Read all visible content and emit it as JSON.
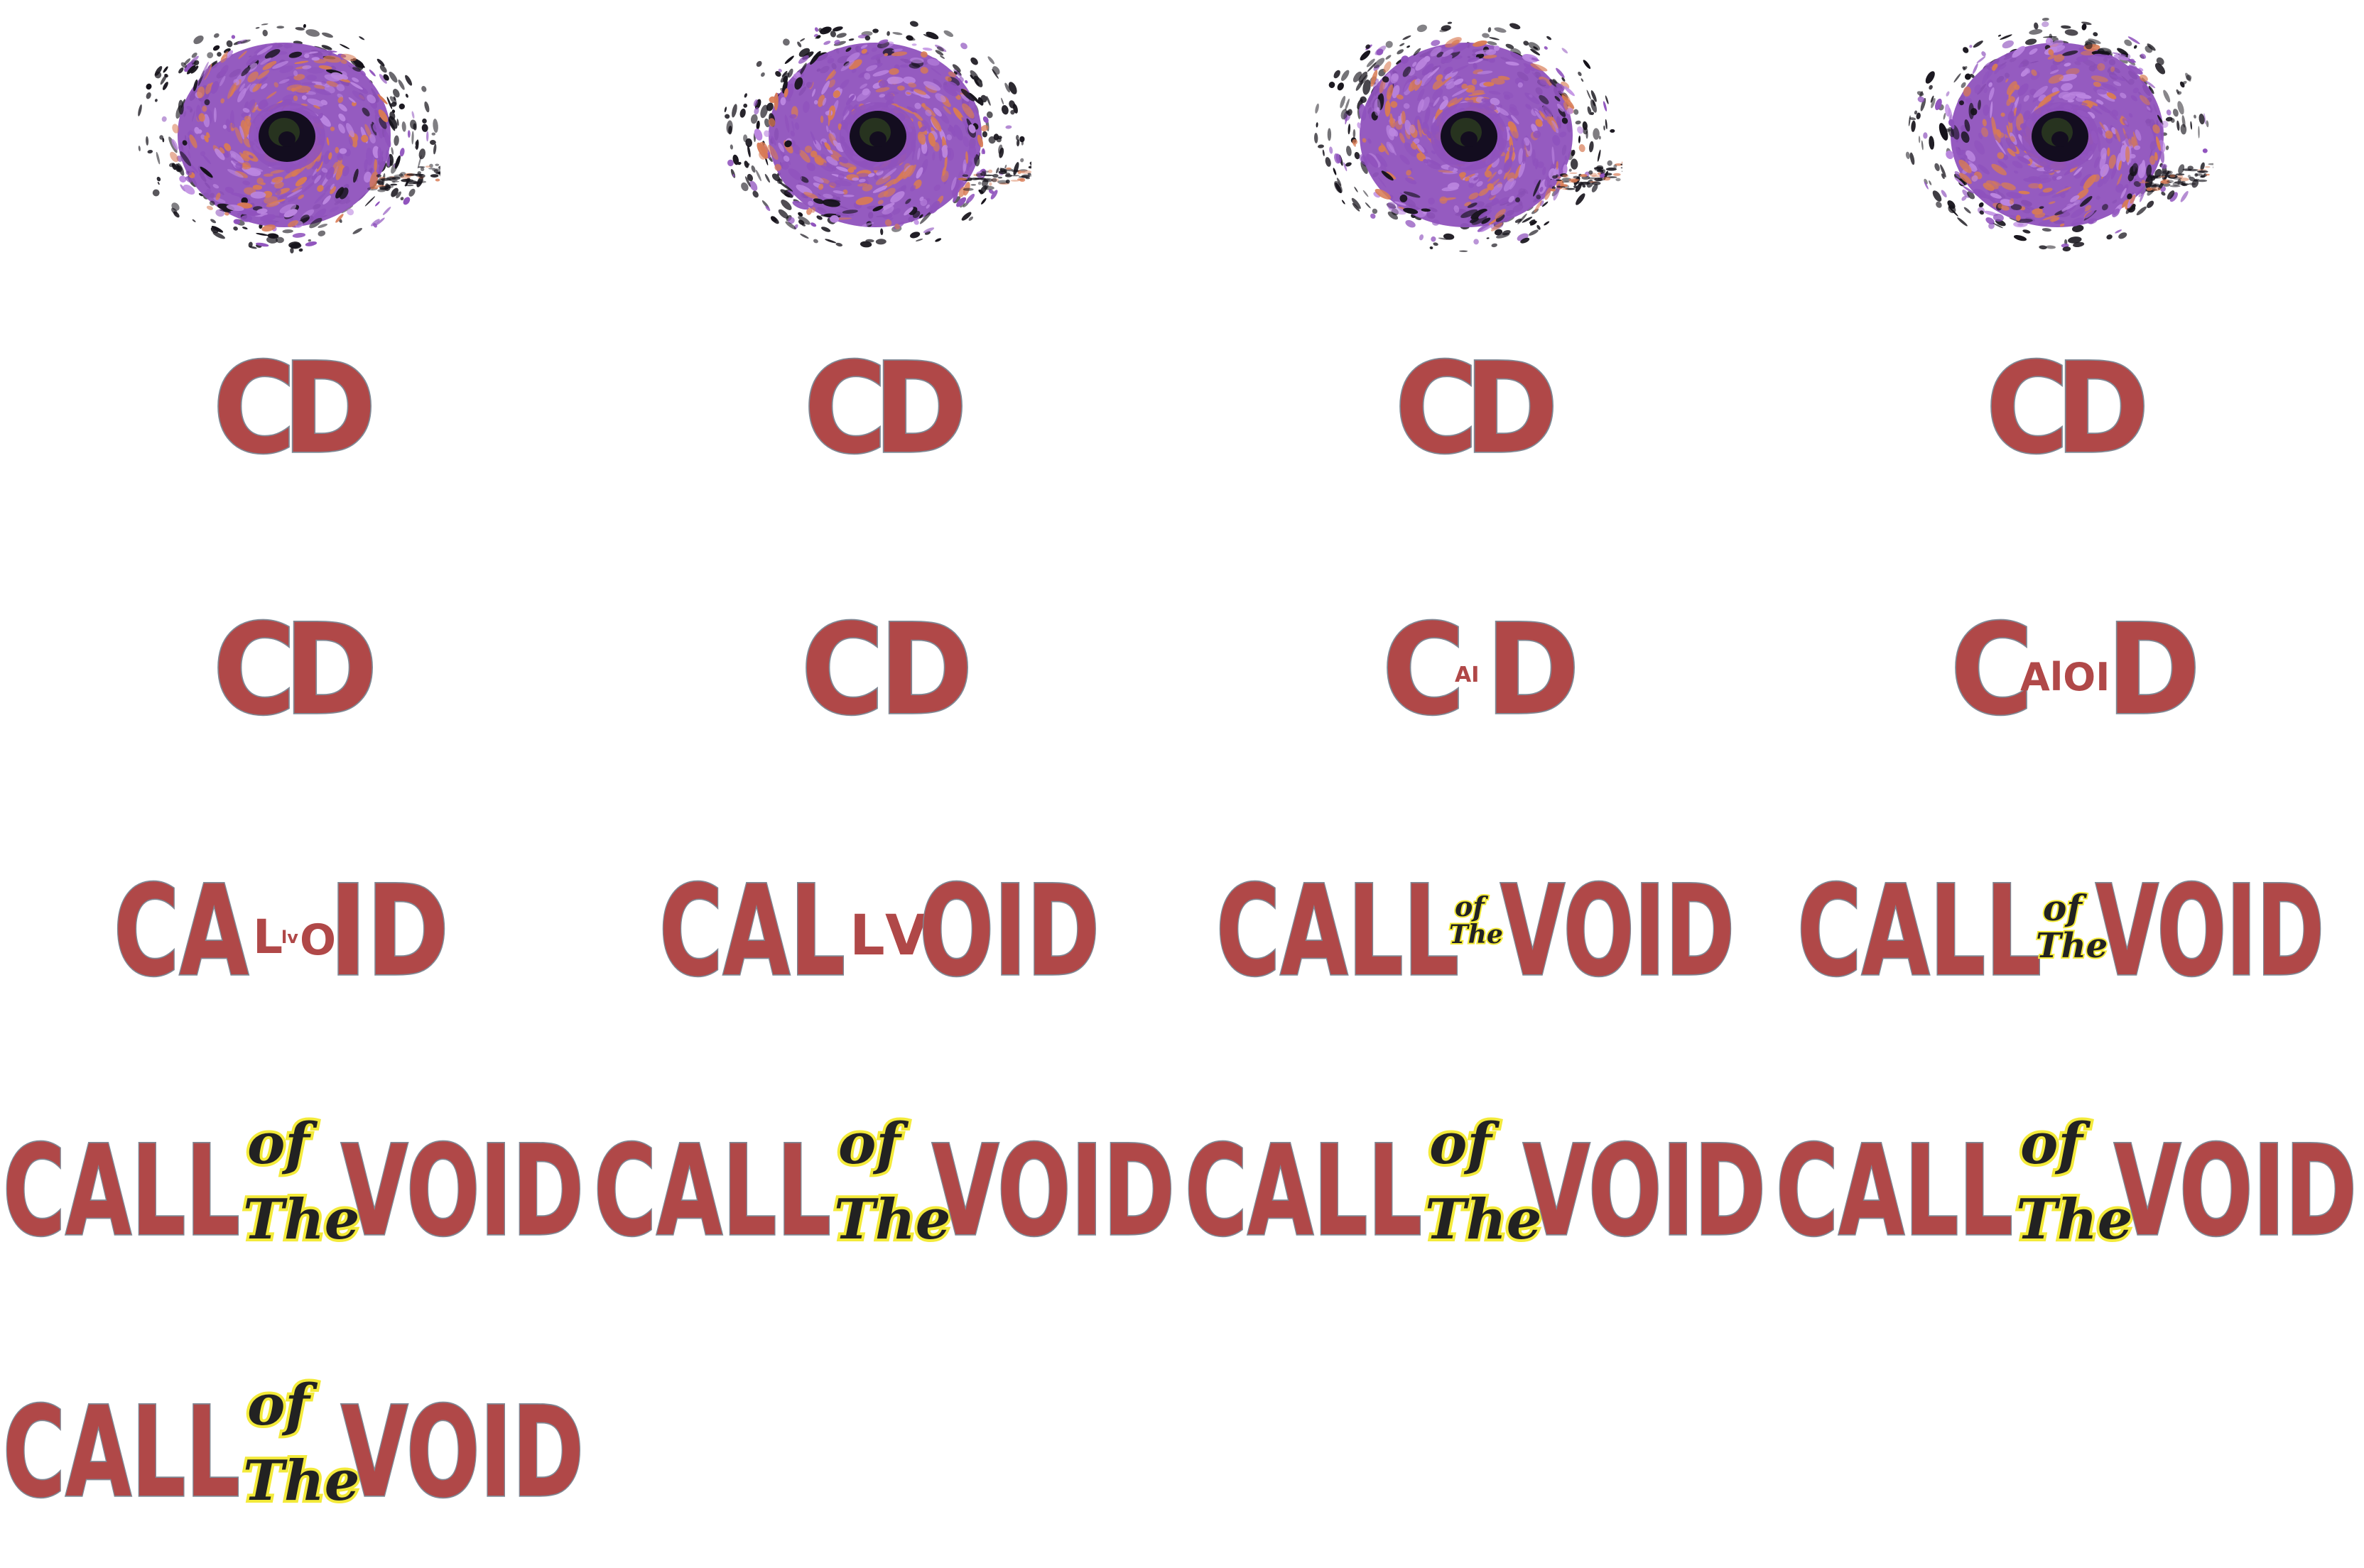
{
  "sprite_sheet": {
    "palette": {
      "void_deep": "#130d1f",
      "void_core": "#2c3b20",
      "void_purple": "#8f52bd",
      "void_light_purple": "#bb86e0",
      "void_orange": "#d87b54",
      "void_black_fleck": "#15121a",
      "logo_red": "#b04848",
      "logo_outline": "#7f8894",
      "script_black": "#222222",
      "script_yellow": "#f3ea3a"
    },
    "void_frames": [
      {
        "icon": "swirling-void-icon",
        "frame": 1
      },
      {
        "icon": "swirling-void-icon",
        "frame": 2
      },
      {
        "icon": "swirling-void-icon",
        "frame": 3
      },
      {
        "icon": "swirling-void-icon",
        "frame": 4
      }
    ],
    "logo_frames": {
      "cd_row_1": [
        {
          "c": "C",
          "d": "D"
        },
        {
          "c": "C",
          "d": "D"
        },
        {
          "c": "C",
          "d": "D"
        },
        {
          "c": "C",
          "d": "D"
        }
      ],
      "cd_row_2": [
        {
          "c": "C",
          "d": "D",
          "middle": ""
        },
        {
          "c": "C",
          "d": "D",
          "middle": ""
        },
        {
          "c": "C",
          "d": "D",
          "middle": "AI"
        },
        {
          "c": "C",
          "d": "D",
          "middle": "AlOI"
        }
      ],
      "partial_row": [
        {
          "left": "CA",
          "small": "L",
          "tiny": "lv",
          "mid": "O",
          "right": "ID"
        },
        {
          "left": "CAL",
          "small": "L",
          "tiny": "",
          "mid": "V",
          "right": "OID"
        },
        {
          "left": "CALL",
          "tiny_of": "of",
          "tiny_the": "The",
          "right": "VOID"
        },
        {
          "left": "CALL",
          "of": "of",
          "the": "The",
          "right": "VOID"
        }
      ],
      "full_row": [
        {
          "call": "CALL",
          "of": "of",
          "the": "The",
          "void": "VOID"
        },
        {
          "call": "CALL",
          "of": "of",
          "the": "The",
          "void": "VOID"
        },
        {
          "call": "CALL",
          "of": "of",
          "the": "The",
          "void": "VOID"
        },
        {
          "call": "CALL",
          "of": "of",
          "the": "The",
          "void": "VOID"
        }
      ],
      "final_frame": {
        "call": "CALL",
        "of": "of",
        "the": "The",
        "void": "VOID"
      }
    }
  }
}
